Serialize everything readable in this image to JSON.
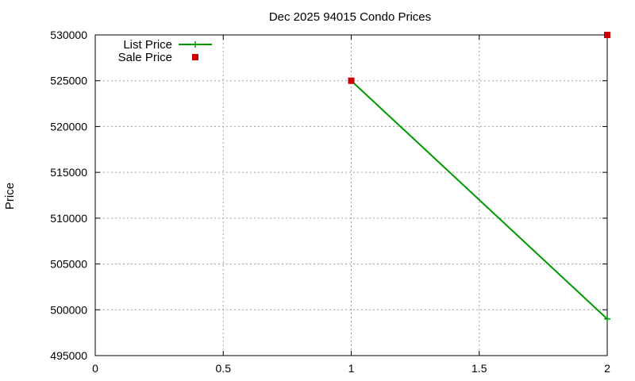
{
  "chart_data": {
    "type": "line",
    "title": "Dec 2025 94015 Condo Prices",
    "xlabel": "",
    "ylabel": "Price",
    "xlim": [
      0,
      2
    ],
    "ylim": [
      495000,
      530000
    ],
    "x_ticks": [
      "0",
      "0.5",
      "1",
      "1.5",
      "2"
    ],
    "x_tick_values": [
      0,
      0.5,
      1,
      1.5,
      2
    ],
    "y_ticks": [
      "495000",
      "500000",
      "505000",
      "510000",
      "515000",
      "520000",
      "525000",
      "530000"
    ],
    "y_tick_values": [
      495000,
      500000,
      505000,
      510000,
      515000,
      520000,
      525000,
      530000
    ],
    "grid": true,
    "legend_position": "top-left",
    "series": [
      {
        "name": "List Price",
        "style": "line+cross",
        "color": "#009900",
        "points": [
          [
            1,
            525000
          ],
          [
            2,
            499000
          ]
        ]
      },
      {
        "name": "Sale Price",
        "style": "square",
        "color": "#cc0000",
        "points": [
          [
            1,
            525000
          ],
          [
            2,
            530000
          ]
        ]
      }
    ]
  }
}
